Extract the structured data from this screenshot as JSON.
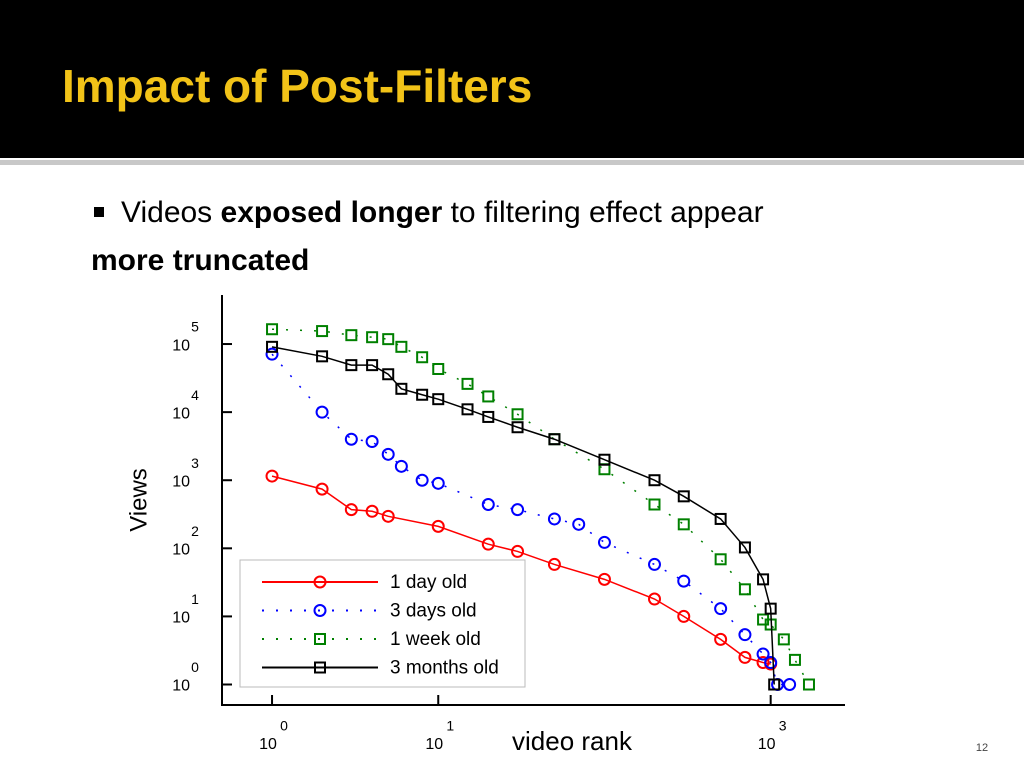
{
  "header": {
    "title": "Impact of Post-Filters"
  },
  "bullet": {
    "runs": [
      {
        "text": "Videos ",
        "bold": false
      },
      {
        "text": "exposed longer",
        "bold": true
      },
      {
        "text": " to filtering effect appear",
        "bold": false
      },
      {
        "text": "more truncated",
        "bold": true
      }
    ]
  },
  "slide_number": "12",
  "chart_data": {
    "type": "scatter-line",
    "x_label": "video rank",
    "y_label": "Views",
    "log_x": true,
    "log_y": true,
    "xlim": [
      0.5,
      2800
    ],
    "ylim": [
      0.5,
      525000
    ],
    "xticks": [
      {
        "value": 1,
        "label": "10",
        "power": "0"
      },
      {
        "value": 10,
        "label": "10",
        "power": "1"
      },
      {
        "value": 1000,
        "label": "10",
        "power": "3"
      }
    ],
    "yticks": [
      {
        "value": 1,
        "label": "10",
        "power": "0"
      },
      {
        "value": 10,
        "label": "10",
        "power": "1"
      },
      {
        "value": 100,
        "label": "10",
        "power": "2"
      },
      {
        "value": 1000,
        "label": "10",
        "power": "3"
      },
      {
        "value": 10000,
        "label": "10",
        "power": "4"
      },
      {
        "value": 100000,
        "label": "10",
        "power": "5"
      }
    ],
    "legend": "lower left",
    "series": [
      {
        "name": "1 day old",
        "color": "#ff0000",
        "line_style": "solid",
        "marker": "circle",
        "x": [
          1,
          2,
          3,
          4,
          5,
          10,
          20,
          30,
          50,
          100,
          200,
          300,
          500,
          700,
          900,
          1000
        ],
        "values": [
          1150,
          740,
          370,
          350,
          295,
          210,
          115,
          90,
          58,
          35,
          18,
          10,
          4.6,
          2.5,
          2.1,
          2
        ]
      },
      {
        "name": "3 days old",
        "color": "#0000ff",
        "line_style": "dotted",
        "marker": "circle",
        "x": [
          1,
          2,
          3,
          4,
          5,
          6,
          8,
          10,
          20,
          30,
          50,
          70,
          100,
          200,
          300,
          500,
          700,
          900,
          1000,
          1100,
          1300
        ],
        "values": [
          71000,
          10000,
          4000,
          3700,
          2400,
          1600,
          1000,
          900,
          440,
          370,
          270,
          225,
          122,
          58,
          33,
          13,
          5.4,
          2.8,
          2.1,
          1,
          1
        ]
      },
      {
        "name": "1 week old",
        "color": "#008000",
        "line_style": "dotted",
        "marker": "square",
        "x": [
          1,
          2,
          3,
          4,
          5,
          6,
          8,
          10,
          15,
          20,
          30,
          50,
          100,
          200,
          300,
          500,
          700,
          900,
          1000,
          1200,
          1400,
          1700
        ],
        "values": [
          165000,
          155000,
          135000,
          126000,
          118000,
          91000,
          64000,
          43000,
          26000,
          17000,
          9300,
          4000,
          1450,
          440,
          225,
          69,
          25,
          9,
          7.6,
          4.6,
          2.3,
          1
        ]
      },
      {
        "name": "3 months old",
        "color": "#000000",
        "line_style": "solid",
        "marker": "square",
        "x": [
          1,
          2,
          3,
          4,
          5,
          6,
          8,
          10,
          15,
          20,
          30,
          50,
          100,
          200,
          300,
          500,
          700,
          900,
          1000,
          1050
        ],
        "values": [
          91000,
          66000,
          49000,
          49000,
          36000,
          22000,
          18000,
          15500,
          11000,
          8500,
          6000,
          4000,
          2000,
          1000,
          580,
          270,
          103,
          35,
          13,
          1
        ]
      }
    ]
  }
}
